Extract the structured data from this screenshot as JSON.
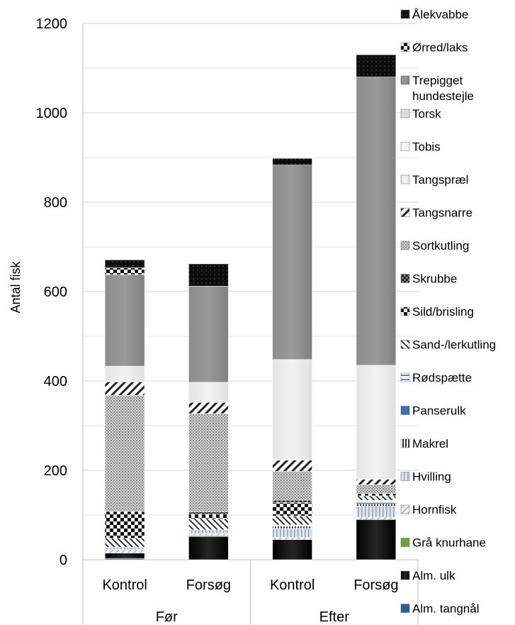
{
  "chart_data": {
    "type": "bar",
    "stacked": true,
    "ylabel": "Antal fisk",
    "ylim": [
      0,
      1200
    ],
    "yticks": [
      0,
      200,
      400,
      600,
      800,
      1000,
      1200
    ],
    "grid": true,
    "legend_position": "right",
    "groups": [
      {
        "label": "Før",
        "categories": [
          "Kontrol",
          "Forsøg"
        ]
      },
      {
        "label": "Efter",
        "categories": [
          "Kontrol",
          "Forsøg"
        ]
      }
    ],
    "categories": [
      "Kontrol",
      "Forsøg",
      "Kontrol",
      "Forsøg"
    ],
    "series": [
      {
        "name": "Alm. tangnål",
        "color": "#2e5f95",
        "values": [
          3,
          0,
          0,
          0
        ]
      },
      {
        "name": "Alm. ulk",
        "color": "#111111",
        "values": [
          12,
          52,
          45,
          90
        ]
      },
      {
        "name": "Grå knurhane",
        "color": "#6aa33a",
        "values": [
          0,
          2,
          0,
          0
        ]
      },
      {
        "name": "Hornfisk",
        "color": "#e6e6e6",
        "values": [
          8,
          5,
          5,
          5
        ]
      },
      {
        "name": "Hvilling",
        "color": "#a9b6c6",
        "values": [
          5,
          8,
          20,
          25
        ]
      },
      {
        "name": "Makrel",
        "color": "#333333",
        "values": [
          0,
          0,
          5,
          5
        ]
      },
      {
        "name": "Panserulk",
        "color": "#3b6fae",
        "values": [
          0,
          0,
          0,
          3
        ]
      },
      {
        "name": "Rødspætte",
        "color": "#5c82b6",
        "values": [
          0,
          0,
          3,
          5
        ]
      },
      {
        "name": "Sand-/lerkutling",
        "color": "#444444",
        "values": [
          20,
          25,
          20,
          10
        ]
      },
      {
        "name": "Sild/brisling",
        "color": "#1e1e1e",
        "values": [
          60,
          10,
          30,
          5
        ]
      },
      {
        "name": "Skrubbe",
        "color": "#555555",
        "values": [
          0,
          5,
          5,
          0
        ]
      },
      {
        "name": "Sortkutling",
        "color": "#bdbdbd",
        "values": [
          260,
          220,
          65,
          20
        ]
      },
      {
        "name": "Tangsnarre",
        "color": "#222222",
        "values": [
          30,
          25,
          25,
          12
        ]
      },
      {
        "name": "Tangspræl",
        "color": "#e9e9e9",
        "values": [
          35,
          45,
          225,
          255
        ]
      },
      {
        "name": "Tobis",
        "color": "#efefef",
        "values": [
          0,
          0,
          0,
          0
        ]
      },
      {
        "name": "Torsk",
        "color": "#d9d9d9",
        "values": [
          0,
          0,
          0,
          0
        ]
      },
      {
        "name": "Trepigget hundestejle",
        "color": "#858585",
        "values": [
          205,
          215,
          435,
          645
        ]
      },
      {
        "name": "Ørred/laks",
        "color": "#151515",
        "values": [
          15,
          0,
          0,
          0
        ]
      },
      {
        "name": "Ålekvabbe",
        "color": "#0d0d0d",
        "values": [
          18,
          50,
          15,
          50
        ]
      }
    ]
  }
}
